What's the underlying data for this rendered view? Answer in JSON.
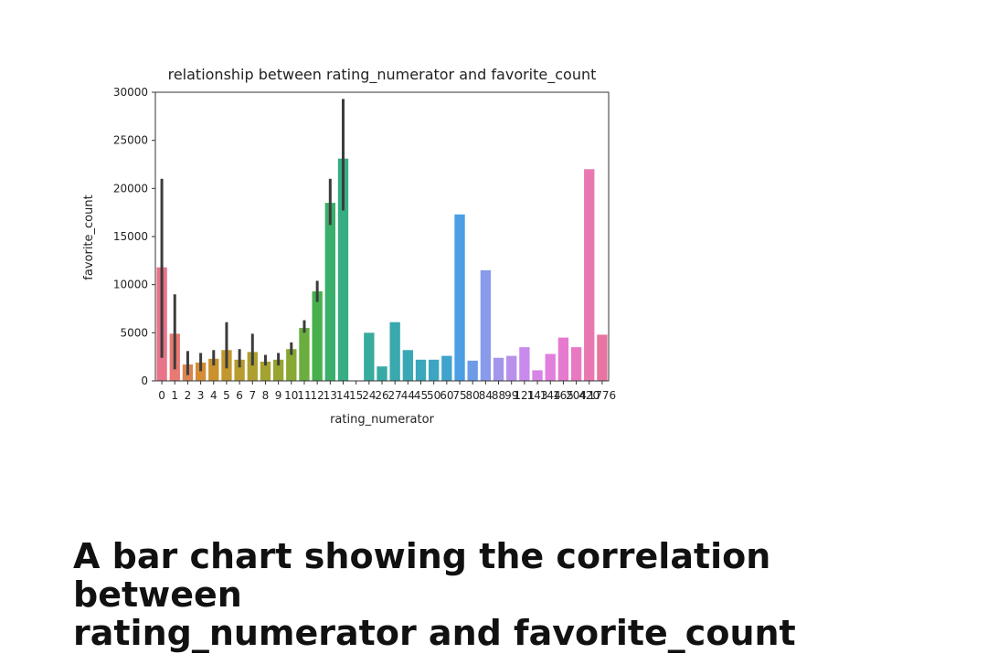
{
  "caption": {
    "line1": "A bar chart showing the correlation between",
    "line2": "rating_numerator and favorite_count"
  },
  "chart_data": {
    "type": "bar",
    "title": "relationship between rating_numerator and favorite_count",
    "xlabel": "rating_numerator",
    "ylabel": "favorite_count",
    "ylim": [
      0,
      30000
    ],
    "yticks": [
      0,
      5000,
      10000,
      15000,
      20000,
      25000,
      30000
    ],
    "grid": false,
    "categories": [
      "0",
      "1",
      "2",
      "3",
      "4",
      "5",
      "6",
      "7",
      "8",
      "9",
      "10",
      "11",
      "12",
      "13",
      "14",
      "15",
      "24",
      "26",
      "27",
      "44",
      "45",
      "50",
      "60",
      "75",
      "80",
      "84",
      "88",
      "99",
      "121",
      "143",
      "144",
      "165",
      "204",
      "420",
      "1776"
    ],
    "values": [
      11800,
      4900,
      1700,
      1900,
      2300,
      3200,
      2200,
      3000,
      2000,
      2200,
      3300,
      5500,
      9300,
      18500,
      23100,
      0,
      5000,
      1500,
      6100,
      3200,
      2200,
      2200,
      2600,
      17300,
      2100,
      11500,
      2400,
      2600,
      3500,
      1100,
      2800,
      4500,
      3500,
      22000,
      4800
    ],
    "error_low": [
      2400,
      1200,
      600,
      1000,
      1600,
      1300,
      1400,
      1600,
      1600,
      1600,
      2700,
      5000,
      8200,
      16200,
      17700,
      null,
      null,
      null,
      null,
      null,
      null,
      null,
      null,
      null,
      null,
      null,
      null,
      null,
      null,
      null,
      null,
      null,
      null,
      null,
      null
    ],
    "error_high": [
      21000,
      9000,
      3100,
      2900,
      3200,
      6100,
      3300,
      4900,
      2700,
      2900,
      4000,
      6300,
      10400,
      21000,
      29300,
      null,
      null,
      null,
      null,
      null,
      null,
      null,
      null,
      null,
      null,
      null,
      null,
      null,
      null,
      null,
      null,
      null,
      null,
      null,
      null
    ],
    "colors": [
      "#e8738a",
      "#e87a73",
      "#d98551",
      "#d48d36",
      "#c9922f",
      "#c2972f",
      "#b89c2f",
      "#ad9f30",
      "#a4a231",
      "#97a531",
      "#87a832",
      "#6aae3f",
      "#47b04d",
      "#3aae6b",
      "#36ad83",
      "#36ac92",
      "#37ab9c",
      "#38aaa5",
      "#39a9ae",
      "#39a8b4",
      "#3aa7bb",
      "#3ca5c2",
      "#3fa3cb",
      "#4a9ee4",
      "#6d9be8",
      "#899aeb",
      "#a496ec",
      "#b890ec",
      "#c88aec",
      "#d684e6",
      "#e07fdc",
      "#e67ad0",
      "#e878c2",
      "#e877b2",
      "#e874a1"
    ]
  }
}
